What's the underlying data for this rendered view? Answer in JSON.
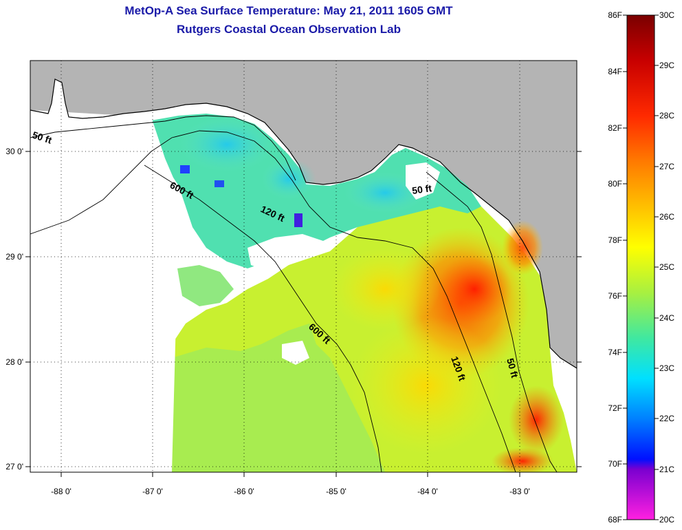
{
  "title_line1": "MetOp-A Sea Surface Temperature:  May 21, 2011 1605 GMT",
  "title_line2": "Rutgers Coastal Ocean Observation Lab",
  "map": {
    "lon_ticks": [
      "-88 0'",
      "-87 0'",
      "-86 0'",
      "-85 0'",
      "-84 0'",
      "-83 0'"
    ],
    "lat_ticks": [
      "30 0'",
      "29 0'",
      "28 0'",
      "27 0'"
    ],
    "contour_labels": [
      "50 ft",
      "600 ft",
      "120 ft",
      "50 ft",
      "600 ft",
      "120 ft",
      "50 ft"
    ],
    "colors": {
      "land": "#b4b4b4",
      "no_data": "#ffffff",
      "coast": "#000000"
    }
  },
  "colorbar": {
    "f_labels": [
      "86F",
      "84F",
      "82F",
      "80F",
      "78F",
      "76F",
      "74F",
      "72F",
      "70F",
      "68F"
    ],
    "c_labels": [
      "30C",
      "29C",
      "28C",
      "27C",
      "26C",
      "25C",
      "24C",
      "23C",
      "22C",
      "21C",
      "20C"
    ],
    "gradient": [
      "#7a0000",
      "#c80000",
      "#ff2a00",
      "#ff7a00",
      "#ffc000",
      "#ffff00",
      "#a8f040",
      "#40e8a0",
      "#00e0ff",
      "#0080ff",
      "#0010ff",
      "#7a00d0",
      "#ff20e0"
    ]
  }
}
